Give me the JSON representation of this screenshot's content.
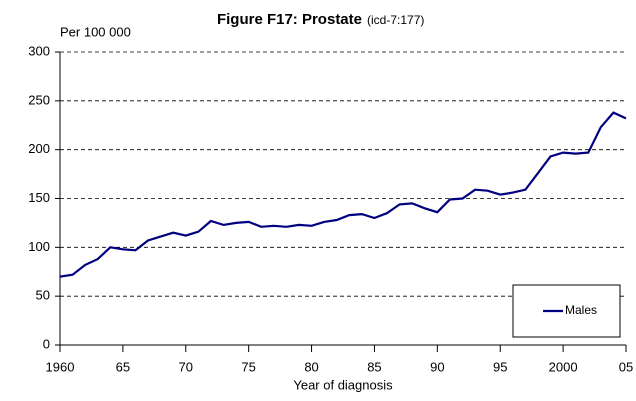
{
  "chart_data": {
    "type": "line",
    "title": "Figure F17: Prostate",
    "subtitle": "(icd-7:177)",
    "y_label": "Per 100 000",
    "x_label": "Year of diagnosis",
    "x": [
      1960,
      1961,
      1962,
      1963,
      1964,
      1965,
      1966,
      1967,
      1968,
      1969,
      1970,
      1971,
      1972,
      1973,
      1974,
      1975,
      1976,
      1977,
      1978,
      1979,
      1980,
      1981,
      1982,
      1983,
      1984,
      1985,
      1986,
      1987,
      1988,
      1989,
      1990,
      1991,
      1992,
      1993,
      1994,
      1995,
      1996,
      1997,
      1998,
      1999,
      2000,
      2001,
      2002,
      2003,
      2004,
      2005
    ],
    "series": [
      {
        "name": "Males",
        "color": "#000080",
        "values": [
          70,
          72,
          82,
          88,
          100,
          98,
          97,
          107,
          111,
          115,
          112,
          116,
          127,
          123,
          125,
          126,
          121,
          122,
          121,
          123,
          122,
          126,
          128,
          133,
          134,
          130,
          135,
          144,
          145,
          140,
          136,
          149,
          150,
          159,
          158,
          154,
          156,
          159,
          176,
          193,
          197,
          196,
          197,
          223,
          238,
          232
        ]
      }
    ],
    "xlim": [
      1960,
      2005
    ],
    "xticks": [
      1960,
      {
        "value": 1965,
        "label": "65"
      },
      {
        "value": 1970,
        "label": "70"
      },
      {
        "value": 1975,
        "label": "75"
      },
      {
        "value": 1980,
        "label": "80"
      },
      {
        "value": 1985,
        "label": "85"
      },
      {
        "value": 1990,
        "label": "90"
      },
      {
        "value": 1995,
        "label": "95"
      },
      2000,
      {
        "value": 2005,
        "label": "05"
      }
    ],
    "ylim": [
      0,
      300
    ],
    "yticks": [
      0,
      50,
      100,
      150,
      200,
      250,
      300
    ],
    "grid": true,
    "legend": "lower right"
  }
}
